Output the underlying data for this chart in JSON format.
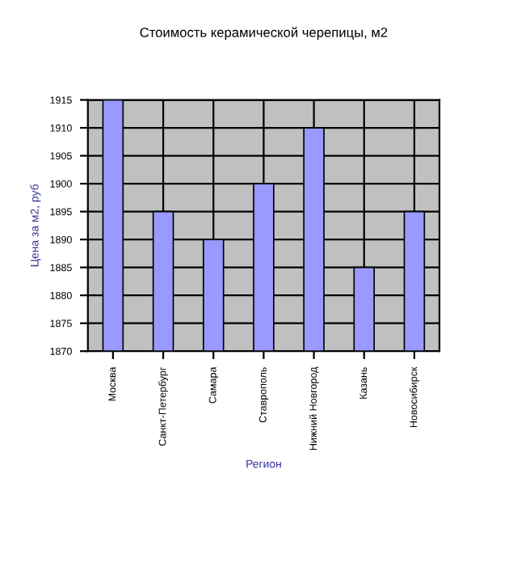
{
  "chart_data": {
    "type": "bar",
    "title": "Стоимость керамической черепицы, м2",
    "xlabel": "Регион",
    "ylabel": "Цена за м2, руб",
    "categories": [
      "Москва",
      "Санкт-Петербург",
      "Самара",
      "Ставрополь",
      "Нижний Новгород",
      "Казань",
      "Новосибирск"
    ],
    "values": [
      1915,
      1895,
      1890,
      1900,
      1910,
      1885,
      1895
    ],
    "color": "#9999ff",
    "ylim": [
      1870,
      1915
    ],
    "yticks": [
      1870,
      1875,
      1880,
      1885,
      1890,
      1895,
      1900,
      1905,
      1910,
      1915
    ],
    "grid": true
  }
}
